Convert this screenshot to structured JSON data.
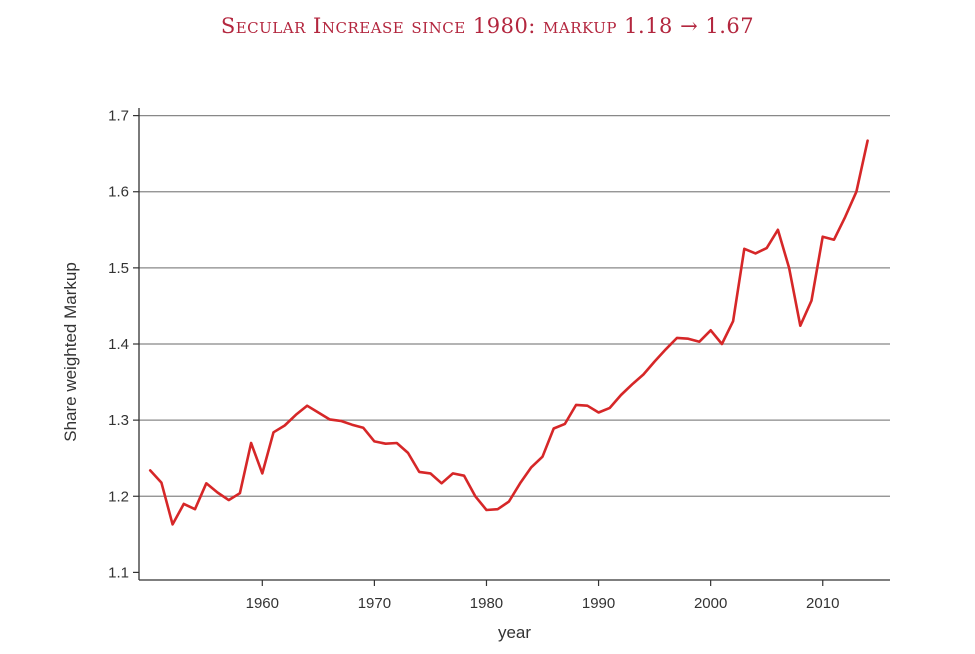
{
  "title": {
    "main": "Secular Increase since 1980: markup",
    "value_from": "1.18",
    "arrow": "→",
    "value_to": "1.67"
  },
  "colors": {
    "line": "#d62728",
    "title": "#b3263e",
    "grid": "#888888",
    "axis": "#333333"
  },
  "chart_data": {
    "type": "line",
    "title": "Secular Increase since 1980: markup 1.18 → 1.67",
    "xlabel": "year",
    "ylabel": "Share weighted Markup",
    "xlim": [
      1949,
      2016
    ],
    "ylim": [
      1.09,
      1.71
    ],
    "xticks": [
      1960,
      1970,
      1980,
      1990,
      2000,
      2010
    ],
    "yticks": [
      1.1,
      1.2,
      1.3,
      1.4,
      1.5,
      1.6,
      1.7
    ],
    "ytick_labels": [
      "1.1",
      "1.2",
      "1.3",
      "1.4",
      "1.5",
      "1.6",
      "1.7"
    ],
    "grid": "horizontal",
    "series": [
      {
        "x": [
          1950,
          1951,
          1952,
          1953,
          1954,
          1955,
          1956,
          1957,
          1958,
          1959,
          1960,
          1961,
          1962,
          1963,
          1964,
          1965,
          1966,
          1967,
          1968,
          1969,
          1970,
          1971,
          1972,
          1973,
          1974,
          1975,
          1976,
          1977,
          1978,
          1979,
          1980,
          1981,
          1982,
          1983,
          1984,
          1985,
          1986,
          1987,
          1988,
          1989,
          1990,
          1991,
          1992,
          1993,
          1994,
          1995,
          1996,
          1997,
          1998,
          1999,
          2000,
          2001,
          2002,
          2003,
          2004,
          2005,
          2006,
          2007,
          2008,
          2009,
          2010,
          2011,
          2012,
          2013,
          2014
        ],
        "values": [
          1.234,
          1.218,
          1.163,
          1.19,
          1.183,
          1.217,
          1.205,
          1.195,
          1.204,
          1.27,
          1.23,
          1.284,
          1.293,
          1.307,
          1.319,
          1.31,
          1.301,
          1.299,
          1.294,
          1.29,
          1.272,
          1.269,
          1.27,
          1.257,
          1.232,
          1.23,
          1.217,
          1.23,
          1.227,
          1.2,
          1.182,
          1.183,
          1.193,
          1.217,
          1.238,
          1.252,
          1.289,
          1.295,
          1.32,
          1.319,
          1.31,
          1.316,
          1.333,
          1.347,
          1.36,
          1.377,
          1.393,
          1.408,
          1.407,
          1.403,
          1.418,
          1.4,
          1.43,
          1.525,
          1.519,
          1.526,
          1.55,
          1.5,
          1.424,
          1.457,
          1.541,
          1.537,
          1.567,
          1.6,
          1.667
        ]
      }
    ]
  }
}
